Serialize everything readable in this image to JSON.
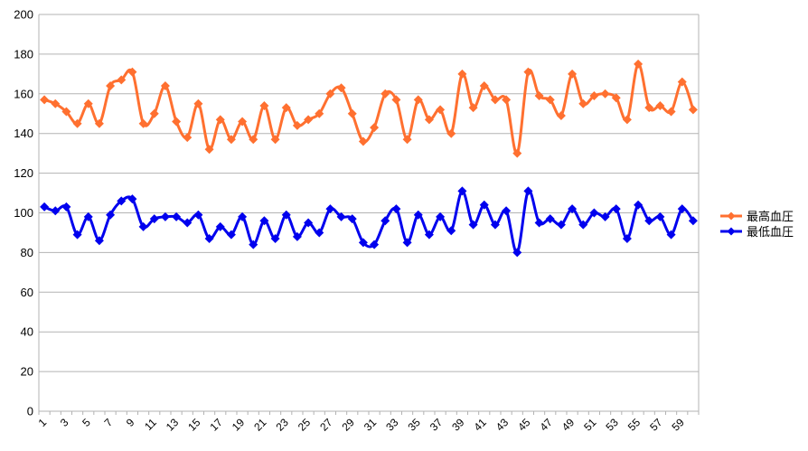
{
  "chart_data": {
    "type": "line",
    "smooth": true,
    "markers": "diamond",
    "title": "",
    "xlabel": "",
    "ylabel": "",
    "ylim": [
      0,
      200
    ],
    "y_ticks": [
      0,
      20,
      40,
      60,
      80,
      100,
      120,
      140,
      160,
      180,
      200
    ],
    "grid": "horizontal",
    "legend_position": "right",
    "x": [
      1,
      2,
      3,
      4,
      5,
      6,
      7,
      8,
      9,
      10,
      11,
      12,
      13,
      14,
      15,
      16,
      17,
      18,
      19,
      20,
      21,
      22,
      23,
      24,
      25,
      26,
      27,
      28,
      29,
      30,
      31,
      32,
      33,
      34,
      35,
      36,
      37,
      38,
      39,
      40,
      41,
      42,
      43,
      44,
      45,
      46,
      47,
      48,
      49,
      50,
      51,
      52,
      53,
      54,
      55,
      56,
      57,
      58,
      59,
      60
    ],
    "x_tick_labels": [
      "1",
      "3",
      "5",
      "7",
      "9",
      "11",
      "13",
      "15",
      "17",
      "19",
      "21",
      "23",
      "25",
      "27",
      "29",
      "31",
      "33",
      "35",
      "37",
      "39",
      "41",
      "43",
      "45",
      "47",
      "49",
      "51",
      "53",
      "55",
      "57",
      "59"
    ],
    "series": [
      {
        "name": "最高血圧",
        "color": "#ff7030",
        "values": [
          157,
          155,
          151,
          145,
          155,
          145,
          164,
          167,
          171,
          145,
          150,
          164,
          146,
          138,
          155,
          132,
          147,
          137,
          146,
          137,
          154,
          137,
          153,
          144,
          147,
          150,
          160,
          163,
          150,
          136,
          143,
          160,
          157,
          137,
          157,
          147,
          152,
          140,
          170,
          153,
          164,
          157,
          157,
          130,
          171,
          159,
          157,
          149,
          170,
          155,
          159,
          160,
          158,
          147,
          175,
          153,
          154,
          151,
          166,
          152
        ]
      },
      {
        "name": "最低血圧",
        "color": "#0000ee",
        "values": [
          103,
          101,
          103,
          89,
          98,
          86,
          99,
          106,
          107,
          93,
          97,
          98,
          98,
          95,
          99,
          87,
          93,
          89,
          98,
          84,
          96,
          87,
          99,
          88,
          95,
          90,
          102,
          98,
          97,
          85,
          84,
          96,
          102,
          85,
          99,
          89,
          98,
          91,
          111,
          94,
          104,
          94,
          101,
          80,
          111,
          95,
          97,
          94,
          102,
          94,
          100,
          98,
          102,
          87,
          104,
          96,
          98,
          89,
          102,
          96
        ]
      }
    ]
  }
}
